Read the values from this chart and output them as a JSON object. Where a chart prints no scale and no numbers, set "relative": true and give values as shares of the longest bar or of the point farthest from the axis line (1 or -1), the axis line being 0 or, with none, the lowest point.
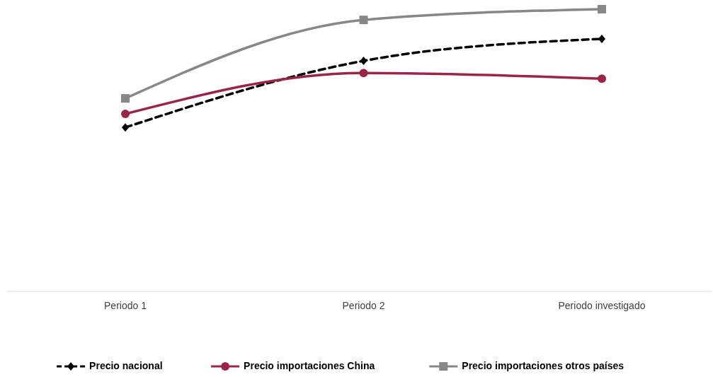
{
  "chart_data": {
    "type": "line",
    "relative": true,
    "categories": [
      "Periodo 1",
      "Periodo 2",
      "Periodo investigado"
    ],
    "legend": "bottom",
    "series": [
      {
        "name": "Precio nacional",
        "color": "#000000",
        "values": [
          0.581,
          0.817,
          0.895
        ],
        "marker": "diamond",
        "line_style": "dashed"
      },
      {
        "name": "Precio importaciones China",
        "color": "#9b2548",
        "values": [
          0.629,
          0.774,
          0.754
        ],
        "marker": "circle",
        "line_style": "solid"
      },
      {
        "name": "Precio importaciones otros países",
        "color": "#878787",
        "values": [
          0.684,
          0.962,
          1
        ],
        "marker": "square",
        "line_style": "solid"
      }
    ]
  }
}
